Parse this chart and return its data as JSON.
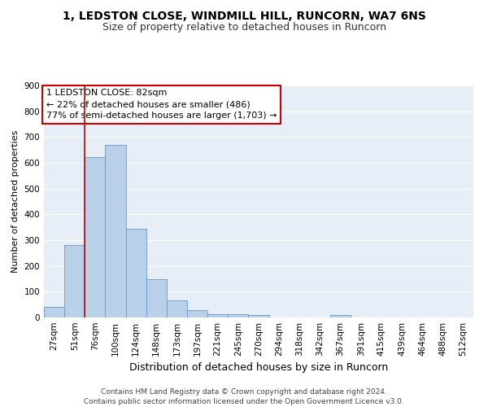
{
  "title1": "1, LEDSTON CLOSE, WINDMILL HILL, RUNCORN, WA7 6NS",
  "title2": "Size of property relative to detached houses in Runcorn",
  "xlabel": "Distribution of detached houses by size in Runcorn",
  "ylabel": "Number of detached properties",
  "bar_labels": [
    "27sqm",
    "51sqm",
    "76sqm",
    "100sqm",
    "124sqm",
    "148sqm",
    "173sqm",
    "197sqm",
    "221sqm",
    "245sqm",
    "270sqm",
    "294sqm",
    "318sqm",
    "342sqm",
    "367sqm",
    "391sqm",
    "415sqm",
    "439sqm",
    "464sqm",
    "488sqm",
    "512sqm"
  ],
  "bar_values": [
    40,
    280,
    622,
    668,
    345,
    148,
    65,
    28,
    14,
    12,
    10,
    0,
    0,
    0,
    8,
    0,
    0,
    0,
    0,
    0,
    0
  ],
  "bar_color": "#b8d0e8",
  "bar_edge_color": "#6699cc",
  "background_color": "#e8eef8",
  "grid_color": "#ffffff",
  "vline_x": 1.5,
  "vline_color": "#cc0000",
  "annotation_text": "1 LEDSTON CLOSE: 82sqm\n← 22% of detached houses are smaller (486)\n77% of semi-detached houses are larger (1,703) →",
  "annotation_box_color": "#cc0000",
  "ylim": [
    0,
    900
  ],
  "yticks": [
    0,
    100,
    200,
    300,
    400,
    500,
    600,
    700,
    800,
    900
  ],
  "footer": "Contains HM Land Registry data © Crown copyright and database right 2024.\nContains public sector information licensed under the Open Government Licence v3.0.",
  "title1_fontsize": 10,
  "title2_fontsize": 9,
  "xlabel_fontsize": 9,
  "ylabel_fontsize": 8,
  "tick_fontsize": 7.5,
  "annot_fontsize": 8,
  "footer_fontsize": 6.5
}
